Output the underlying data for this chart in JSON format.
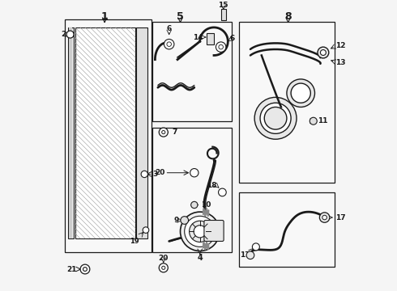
{
  "bg_color": "#f5f5f5",
  "line_color": "#1a1a1a",
  "fig_width": 4.9,
  "fig_height": 3.6,
  "dpi": 100,
  "boxes": {
    "condenser": [
      0.022,
      0.13,
      0.31,
      0.835
    ],
    "hose5": [
      0.335,
      0.6,
      0.285,
      0.355
    ],
    "hose_mid": [
      0.335,
      0.13,
      0.285,
      0.445
    ],
    "lines8": [
      0.645,
      0.38,
      0.34,
      0.575
    ],
    "hose16": [
      0.645,
      0.08,
      0.34,
      0.265
    ]
  },
  "section_labels": {
    "1": [
      0.165,
      0.975
    ],
    "5": [
      0.435,
      0.975
    ],
    "8": [
      0.82,
      0.975
    ]
  }
}
